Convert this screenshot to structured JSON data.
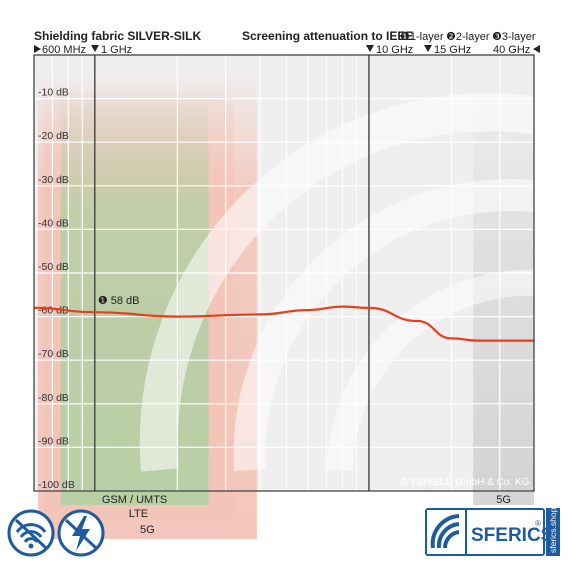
{
  "header": {
    "left_title": "Shielding fabric SILVER-SILK",
    "right_title": "Screening attenuation to IEEE",
    "layers": [
      "❶1-layer",
      "❷2-layer",
      "❸3-layer"
    ],
    "marker_600mhz": "600 MHz",
    "marker_1ghz": "1 GHz",
    "marker_10ghz": "10 GHz",
    "marker_15ghz": "15 GHz",
    "marker_40ghz": "40 GHz"
  },
  "copyright": "© YSHIELD GmbH & Co. KG",
  "brand": {
    "name": "SFERICS",
    "reg": "®",
    "url": "sferics.shop"
  },
  "icons": [
    "wifi-shield-icon",
    "lightning-shield-icon",
    "sferics-logo-icon"
  ],
  "colors": {
    "curve": "#e8401c",
    "band_green": "#b9cfa6",
    "band_red": "#f3c4b8",
    "grid_bg": "#eeeeee",
    "frame": "#333333",
    "logo_blue": "#1f5c9e"
  },
  "chart_data": {
    "type": "line",
    "xscale": "log",
    "xlim": [
      0.6,
      40
    ],
    "xunit": "GHz",
    "ylim": [
      -100,
      0
    ],
    "yunit": "dB",
    "yticks": [
      -10,
      -20,
      -30,
      -40,
      -50,
      -60,
      -70,
      -80,
      -90,
      -100
    ],
    "ytick_labels": [
      "-10 dB",
      "-20 dB",
      "-30 dB",
      "-40 dB",
      "-50 dB",
      "-60 dB",
      "-70 dB",
      "-80 dB",
      "-90 dB",
      "-100 dB"
    ],
    "vlines_ghz": [
      1,
      10
    ],
    "grid_x_ghz": [
      0.6,
      0.7,
      0.8,
      0.9,
      1,
      2,
      3,
      4,
      5,
      6,
      7,
      8,
      9,
      10,
      20,
      30,
      40
    ],
    "series": [
      {
        "x": [
          0.6,
          1,
          2,
          4,
          6,
          8,
          10,
          15,
          20,
          25,
          40
        ],
        "y": [
          -58,
          -59,
          -60,
          -59.5,
          -58.5,
          -57.7,
          -58,
          -61,
          -65,
          -65.5,
          -65.5
        ]
      }
    ],
    "annotation": {
      "label": "❶ 58 dB",
      "x": 1,
      "y": -58
    },
    "bands": [
      {
        "label": "GSM / UMTS",
        "x0": 0.75,
        "x1": 2.6
      },
      {
        "label": "LTE",
        "x0": 0.65,
        "x1": 3.2
      },
      {
        "label": "5G",
        "x0": 0.62,
        "x1": 3.9
      },
      {
        "label": "5G",
        "x0": 24,
        "x1": 40
      }
    ]
  }
}
